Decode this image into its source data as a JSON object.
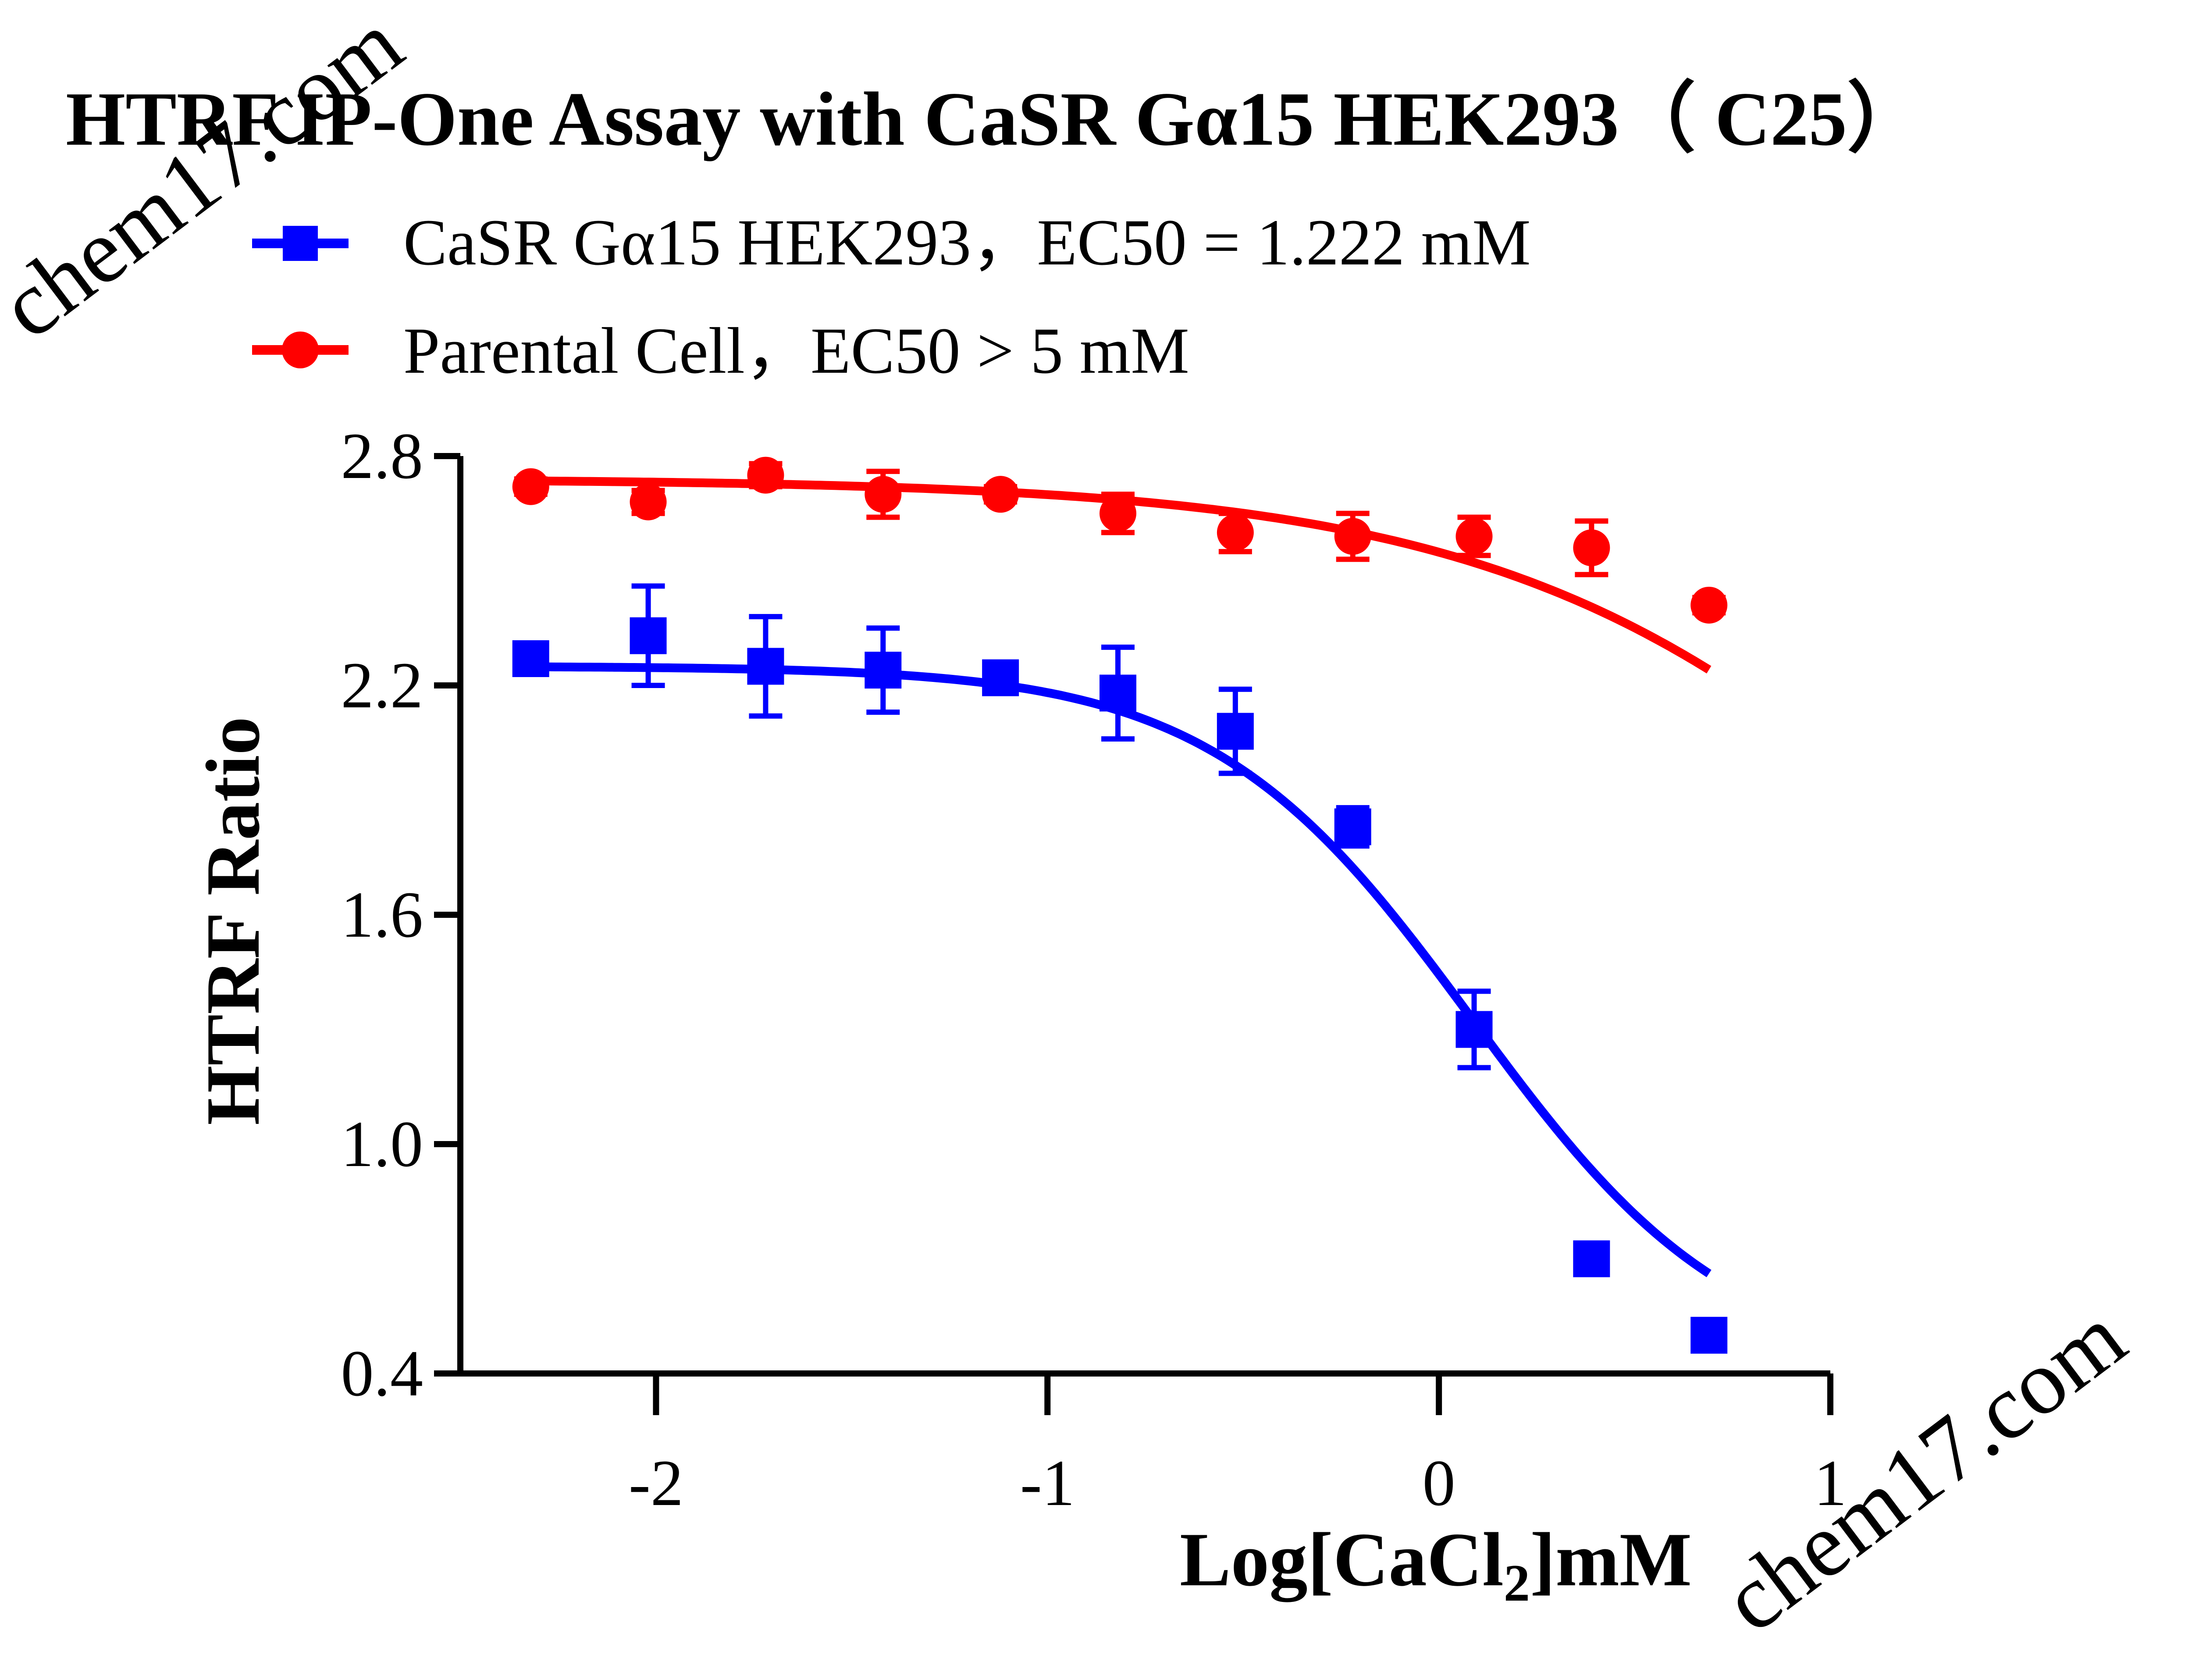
{
  "chart_data": {
    "type": "scatter",
    "title": "HTRF IP-One Assay with CaSR Gα15 HEK293（ C25）",
    "xlabel": "Log[CaCl",
    "xlabel_sub": "2",
    "xlabel_suffix": "]mM",
    "ylabel": "HTRF Ratio",
    "xlim": [
      -2.5,
      1.0
    ],
    "ylim": [
      0.4,
      2.8
    ],
    "xticks": [
      -2,
      -1,
      0,
      1
    ],
    "xtick_labels": [
      "-2",
      "-1",
      "0",
      "1"
    ],
    "yticks": [
      0.4,
      1.0,
      1.6,
      2.2,
      2.8
    ],
    "ytick_labels": [
      "0.4",
      "1.0",
      "1.6",
      "2.2",
      "2.8"
    ],
    "grid": false,
    "legend_position": "top-left",
    "series": [
      {
        "name": "CaSR Gα15 HEK293，EC50 = 1.222 mM",
        "color": "#0000ff",
        "marker": "square",
        "x": [
          -2.32,
          -2.02,
          -1.72,
          -1.42,
          -1.12,
          -0.82,
          -0.52,
          -0.22,
          0.09,
          0.39,
          0.69
        ],
        "y": [
          2.27,
          2.33,
          2.25,
          2.24,
          2.22,
          2.18,
          2.08,
          1.83,
          1.3,
          0.7,
          0.5
        ],
        "err": [
          0.04,
          0.13,
          0.13,
          0.11,
          0.02,
          0.12,
          0.11,
          0.05,
          0.1,
          0.04,
          0.02
        ],
        "fit": {
          "top": 2.25,
          "bottom": 0.4,
          "logec50": 0.087,
          "hill": -1.3
        }
      },
      {
        "name": "Parental Cell，EC50 > 5 mM",
        "color": "#ff0000",
        "marker": "circle",
        "x": [
          -2.32,
          -2.02,
          -1.72,
          -1.42,
          -1.12,
          -0.82,
          -0.52,
          -0.22,
          0.09,
          0.39,
          0.69
        ],
        "y": [
          2.72,
          2.68,
          2.75,
          2.7,
          2.7,
          2.65,
          2.6,
          2.59,
          2.59,
          2.56,
          2.41
        ],
        "err": [
          0.02,
          0.03,
          0.03,
          0.06,
          0.02,
          0.05,
          0.05,
          0.06,
          0.05,
          0.07,
          0.02
        ],
        "fit": {
          "top": 2.74,
          "bottom": 0.4,
          "logec50": 1.5,
          "hill": -0.7
        }
      }
    ]
  },
  "watermark": "chem17.com"
}
